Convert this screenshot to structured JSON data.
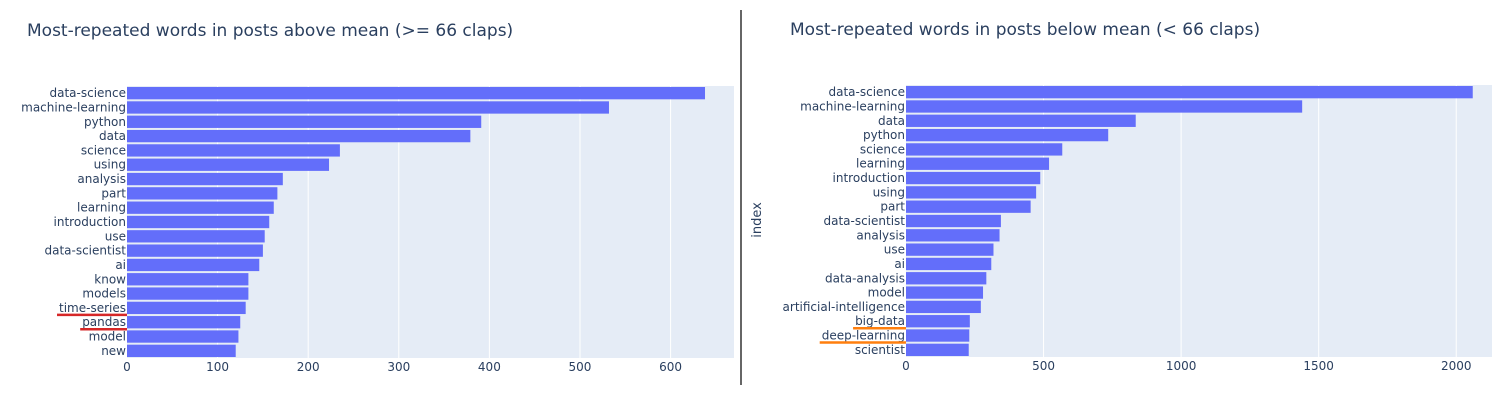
{
  "chart_data": [
    {
      "type": "bar",
      "orientation": "horizontal",
      "title": "Most-repeated words in posts above mean (>= 66 claps)",
      "xlabel": "",
      "ylabel": "",
      "categories": [
        "data-science",
        "machine-learning",
        "python",
        "data",
        "science",
        "using",
        "analysis",
        "part",
        "learning",
        "introduction",
        "use",
        "data-scientist",
        "ai",
        "know",
        "models",
        "time-series",
        "pandas",
        "model",
        "new"
      ],
      "values": [
        638,
        532,
        391,
        379,
        235,
        223,
        172,
        166,
        162,
        157,
        152,
        150,
        146,
        134,
        134,
        131,
        125,
        123,
        120
      ],
      "xlim": [
        0,
        670
      ],
      "xticks": [
        0,
        100,
        200,
        300,
        400,
        500,
        600
      ],
      "bar_color": "#636efa",
      "plot_bg": "#e5ecf6",
      "grid": true,
      "underlined": [
        {
          "category": "time-series",
          "color": "#d62728"
        },
        {
          "category": "pandas",
          "color": "#d62728"
        }
      ]
    },
    {
      "type": "bar",
      "orientation": "horizontal",
      "title": "Most-repeated words in posts below mean (< 66 claps)",
      "xlabel": "",
      "ylabel": "index",
      "categories": [
        "data-science",
        "machine-learning",
        "data",
        "python",
        "science",
        "learning",
        "introduction",
        "using",
        "part",
        "data-scientist",
        "analysis",
        "use",
        "ai",
        "data-analysis",
        "model",
        "artificial-intelligence",
        "big-data",
        "deep-learning",
        "scientist"
      ],
      "values": [
        2060,
        1440,
        835,
        735,
        568,
        520,
        488,
        473,
        453,
        345,
        340,
        318,
        310,
        292,
        280,
        272,
        232,
        230,
        228
      ],
      "xlim": [
        0,
        2130
      ],
      "xticks": [
        0,
        500,
        1000,
        1500,
        2000
      ],
      "bar_color": "#636efa",
      "plot_bg": "#e5ecf6",
      "grid": true,
      "underlined": [
        {
          "category": "big-data",
          "color": "#ff7f0e"
        },
        {
          "category": "deep-learning",
          "color": "#ff7f0e"
        }
      ]
    }
  ]
}
